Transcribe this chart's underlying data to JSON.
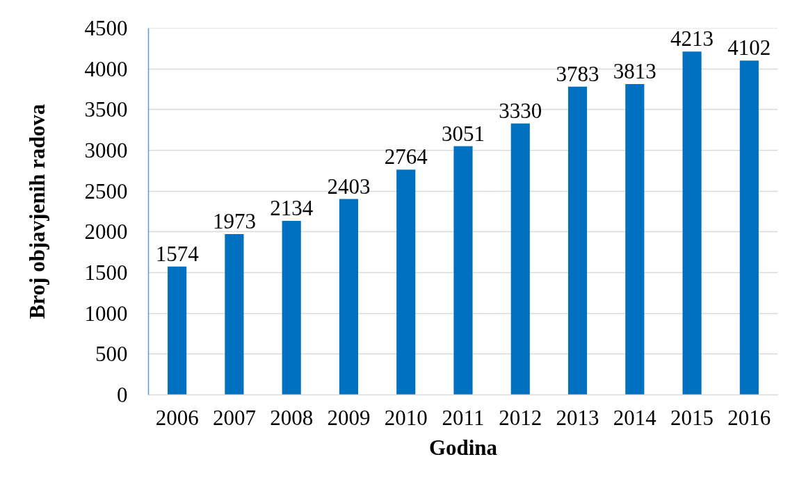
{
  "chart_data": {
    "type": "bar",
    "xlabel": "Godina",
    "ylabel": "Broj objavjenih radova",
    "categories": [
      "2006",
      "2007",
      "2008",
      "2009",
      "2010",
      "2011",
      "2012",
      "2013",
      "2014",
      "2015",
      "2016"
    ],
    "values": [
      1574,
      1973,
      2134,
      2403,
      2764,
      3051,
      3330,
      3783,
      3813,
      4213,
      4102
    ],
    "color": "#0070c0",
    "ylim": [
      0,
      4500
    ],
    "yticks": [
      0,
      500,
      1000,
      1500,
      2000,
      2500,
      3000,
      3500,
      4000,
      4500
    ],
    "grid": "y",
    "data_labels": true
  }
}
